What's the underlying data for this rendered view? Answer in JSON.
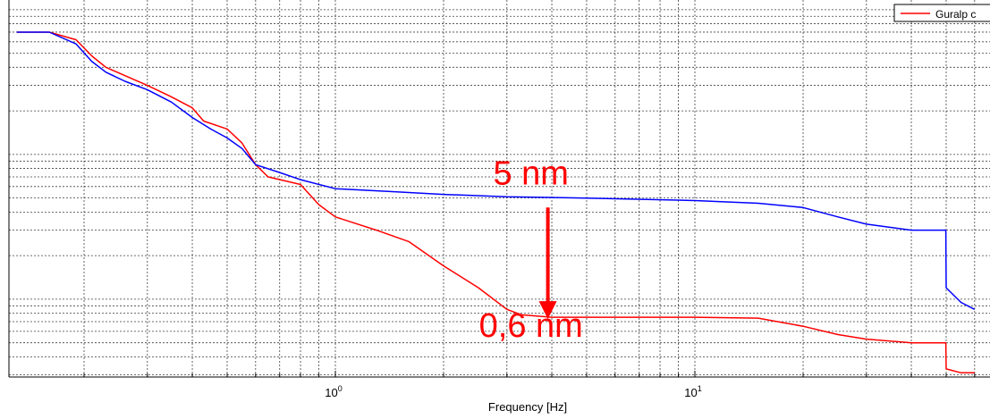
{
  "chart_data": {
    "type": "line",
    "xlabel": "Frequency [Hz]",
    "x_scale": "log",
    "y_scale": "log",
    "xlim": [
      0.13,
      60
    ],
    "grid": true,
    "x_tick_labels": [
      {
        "value": 1,
        "base": "10",
        "exp": "0"
      },
      {
        "value": 10,
        "base": "10",
        "exp": "1"
      }
    ],
    "legend": {
      "placement": "top-right",
      "entries": [
        {
          "label": "Guralp c",
          "color": "#ff0000"
        }
      ]
    },
    "series": [
      {
        "name": "Guralp c",
        "color": "#ff0000",
        "points": [
          [
            0.13,
            70
          ],
          [
            0.16,
            70
          ],
          [
            0.19,
            62
          ],
          [
            0.21,
            48
          ],
          [
            0.23,
            40
          ],
          [
            0.26,
            35
          ],
          [
            0.3,
            30
          ],
          [
            0.35,
            25
          ],
          [
            0.4,
            21
          ],
          [
            0.43,
            17
          ],
          [
            0.5,
            15
          ],
          [
            0.55,
            12
          ],
          [
            0.6,
            8.5
          ],
          [
            0.65,
            7
          ],
          [
            0.8,
            6.2
          ],
          [
            0.9,
            4.5
          ],
          [
            1.0,
            3.7
          ],
          [
            1.3,
            3.0
          ],
          [
            1.6,
            2.5
          ],
          [
            2.0,
            1.7
          ],
          [
            2.5,
            1.2
          ],
          [
            3.0,
            0.85
          ],
          [
            3.3,
            0.78
          ],
          [
            4,
            0.75
          ],
          [
            6,
            0.75
          ],
          [
            10,
            0.75
          ],
          [
            15,
            0.74
          ],
          [
            20,
            0.65
          ],
          [
            25,
            0.57
          ],
          [
            30,
            0.53
          ],
          [
            40,
            0.5
          ],
          [
            49.9,
            0.5
          ],
          [
            50,
            0.33
          ],
          [
            55,
            0.31
          ],
          [
            60,
            0.31
          ]
        ]
      },
      {
        "name": "",
        "color": "#0000ff",
        "points": [
          [
            0.13,
            70
          ],
          [
            0.16,
            70
          ],
          [
            0.19,
            58
          ],
          [
            0.21,
            44
          ],
          [
            0.23,
            37
          ],
          [
            0.26,
            32
          ],
          [
            0.3,
            28
          ],
          [
            0.35,
            23
          ],
          [
            0.4,
            18
          ],
          [
            0.45,
            15
          ],
          [
            0.5,
            13
          ],
          [
            0.55,
            11
          ],
          [
            0.6,
            8.5
          ],
          [
            0.7,
            7.5
          ],
          [
            0.8,
            6.7
          ],
          [
            1.0,
            5.8
          ],
          [
            1.5,
            5.5
          ],
          [
            2,
            5.3
          ],
          [
            3,
            5.1
          ],
          [
            5,
            5.0
          ],
          [
            10,
            4.8
          ],
          [
            15,
            4.6
          ],
          [
            20,
            4.3
          ],
          [
            25,
            3.7
          ],
          [
            30,
            3.3
          ],
          [
            40,
            3.0
          ],
          [
            49.9,
            3.0
          ],
          [
            50,
            1.2
          ],
          [
            55,
            0.95
          ],
          [
            60,
            0.85
          ]
        ]
      }
    ],
    "annotations": [
      {
        "text": "5 nm",
        "color": "#ff0000",
        "x": 3.5,
        "y": 6.2
      },
      {
        "text": "0,6 nm",
        "color": "#ff0000",
        "x": 3.5,
        "y": 0.55
      }
    ],
    "arrow": {
      "from": [
        3.9,
        4.3
      ],
      "to": [
        3.9,
        0.75
      ],
      "color": "#ff0000"
    }
  }
}
